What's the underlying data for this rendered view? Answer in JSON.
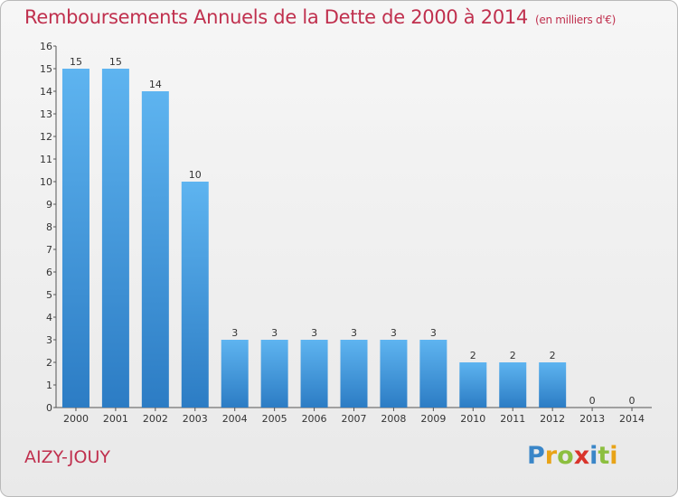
{
  "chart_data": {
    "type": "bar",
    "title": "Remboursements Annuels de la Dette de 2000 à 2014",
    "subtitle": "(en milliers d'€)",
    "categories": [
      "2000",
      "2001",
      "2002",
      "2003",
      "2004",
      "2005",
      "2006",
      "2007",
      "2008",
      "2009",
      "2010",
      "2011",
      "2012",
      "2013",
      "2014"
    ],
    "values": [
      15,
      15,
      14,
      10,
      3,
      3,
      3,
      3,
      3,
      3,
      2,
      2,
      2,
      0,
      0
    ],
    "ylim": [
      0,
      16
    ],
    "yticks": [
      0,
      1,
      2,
      3,
      4,
      5,
      6,
      7,
      8,
      9,
      10,
      11,
      12,
      13,
      14,
      15,
      16
    ],
    "xlabel": "",
    "ylabel": "",
    "bar_color": "#4a9ee0",
    "grid": false
  },
  "footer": {
    "commune": "AIZY-JOUY",
    "logo": [
      "P",
      "r",
      "o",
      "x",
      "i",
      "t",
      "i"
    ],
    "logo_colors": [
      "#3a86c8",
      "#e8a317",
      "#8cbf3f",
      "#d9342b",
      "#3a86c8",
      "#8cbf3f",
      "#e8a317"
    ]
  },
  "colors": {
    "accent": "#c0304e",
    "axis": "#555555"
  }
}
